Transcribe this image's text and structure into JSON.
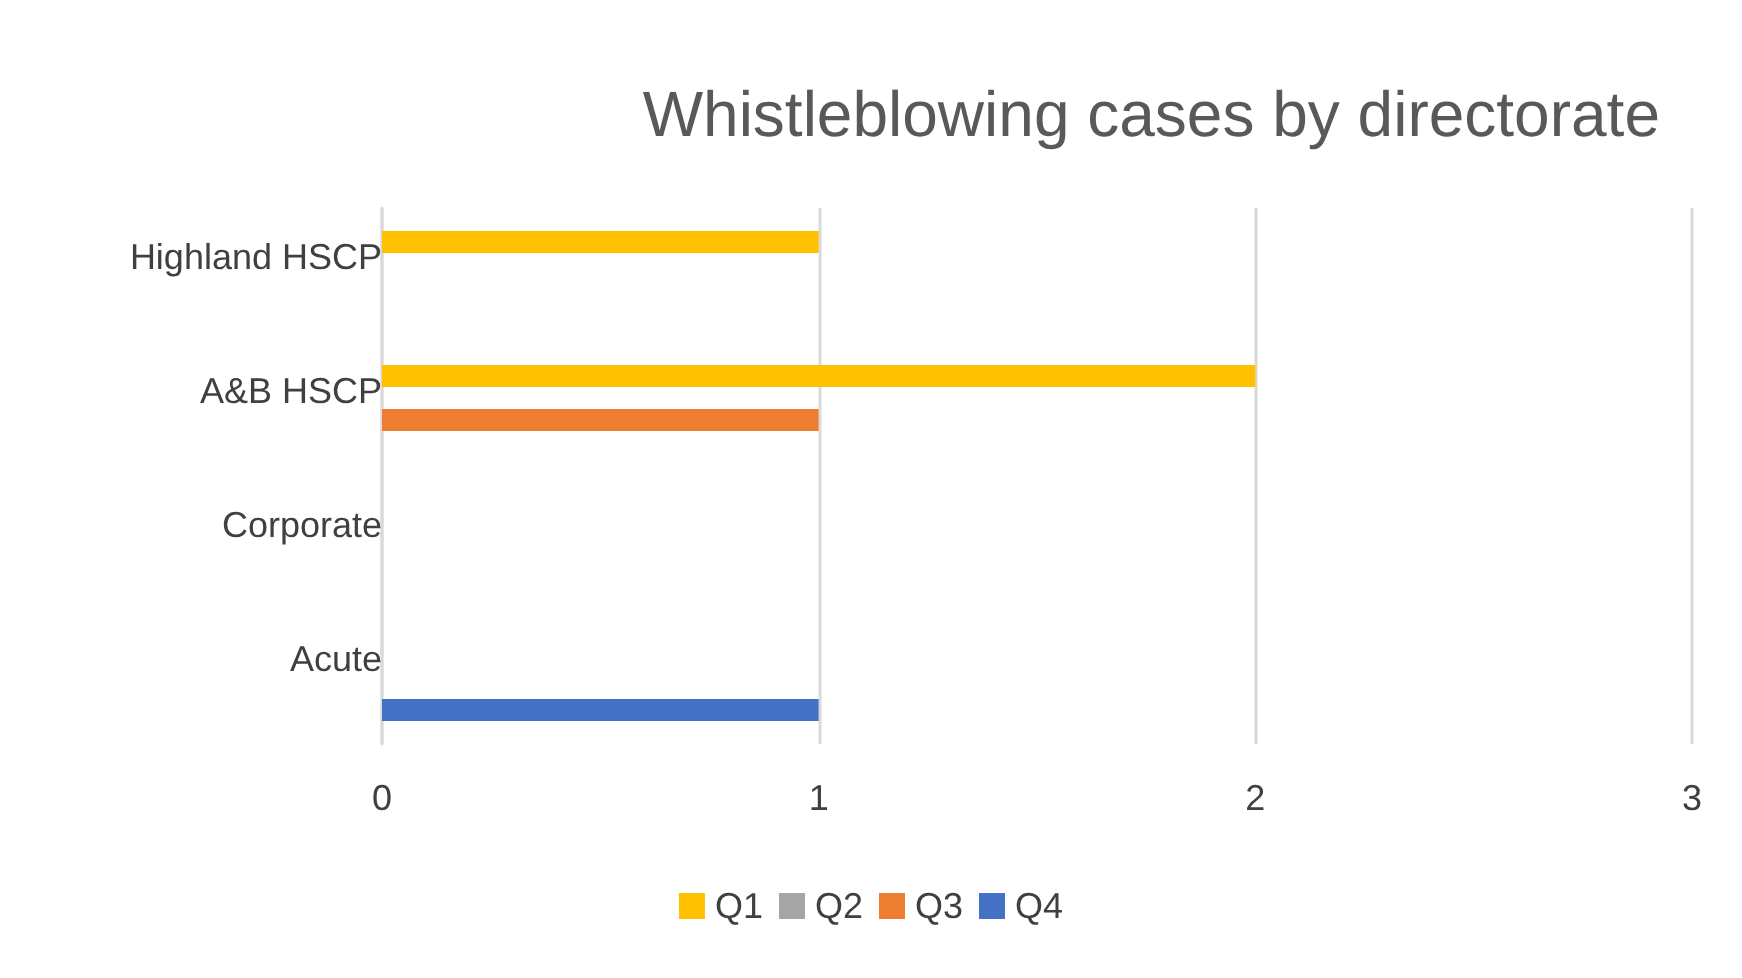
{
  "chart_data": {
    "type": "bar",
    "orientation": "horizontal",
    "title": "Whistleblowing cases by directorate",
    "categories": [
      "Highland HSCP",
      "A&B HSCP",
      "Corporate",
      "Acute"
    ],
    "series": [
      {
        "name": "Q1",
        "color": "#ffc000",
        "values": [
          1,
          2,
          0,
          0
        ]
      },
      {
        "name": "Q2",
        "color": "#a5a5a5",
        "values": [
          0,
          0,
          0,
          0
        ]
      },
      {
        "name": "Q3",
        "color": "#ed7d31",
        "values": [
          0,
          1,
          0,
          0
        ]
      },
      {
        "name": "Q4",
        "color": "#4472c4",
        "values": [
          0,
          0,
          0,
          1
        ]
      }
    ],
    "xlim": [
      0,
      3
    ],
    "xticks": [
      0,
      1,
      2,
      3
    ],
    "grid": "x",
    "legend": "bottom"
  }
}
